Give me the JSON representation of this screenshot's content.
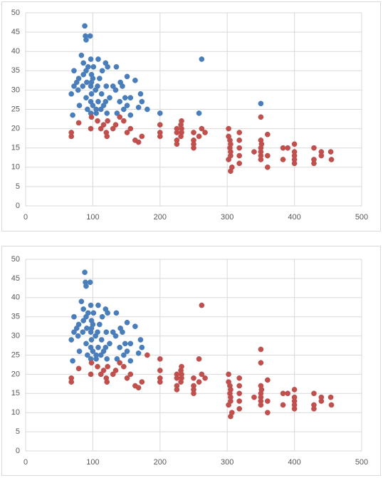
{
  "chart_data": [
    {
      "type": "scatter",
      "xlim": [
        0,
        500
      ],
      "xticks": [
        0,
        100,
        200,
        300,
        400,
        500
      ],
      "ylim": [
        0,
        50
      ],
      "yticks": [
        0,
        5,
        10,
        15,
        20,
        25,
        30,
        35,
        40,
        45,
        50
      ],
      "grid": true,
      "series": [
        {
          "color": "#4a7ebb",
          "x": [
            68,
            70,
            72,
            72,
            76,
            78,
            79,
            80,
            83,
            85,
            86,
            88,
            89,
            90,
            90,
            90,
            91,
            92,
            93,
            96,
            97,
            97,
            97,
            97,
            98,
            98,
            100,
            100,
            101,
            104,
            105,
            107,
            108,
            108,
            110,
            112,
            113,
            114,
            116,
            119,
            120,
            121,
            122,
            125,
            130,
            134,
            135,
            136,
            140,
            141,
            144,
            146,
            148,
            151,
            151,
            156,
            156,
            163,
            168,
            171,
            173,
            181,
            200,
            258,
            262,
            350,
            119,
            105,
            98,
            86
          ],
          "values": [
            29,
            23.5,
            31,
            35,
            32,
            30,
            33,
            26,
            39,
            31,
            37,
            46.6,
            44,
            43,
            35,
            28,
            32,
            25,
            36,
            44,
            38,
            31,
            27,
            24,
            34,
            29,
            33,
            26,
            36,
            30,
            24,
            31,
            38,
            27,
            33,
            25,
            29,
            35,
            26,
            37,
            31,
            24,
            36,
            28,
            31,
            30,
            36,
            24,
            27,
            32,
            31,
            25,
            28,
            33.5,
            26,
            28,
            23.5,
            32.5,
            25.5,
            29,
            27,
            25,
            24,
            24,
            38,
            26.5,
            27,
            25,
            32,
            34
          ]
        },
        {
          "color": "#c0504d",
          "x": [
            68,
            68,
            79,
            97,
            98,
            107,
            112,
            116,
            120,
            121,
            122,
            130,
            134,
            140,
            146,
            151,
            156,
            163,
            168,
            173,
            200,
            200,
            200,
            225,
            225,
            231,
            231,
            232,
            232,
            225,
            250,
            250,
            250,
            258,
            262,
            267,
            250,
            302,
            302,
            304,
            305,
            305,
            307,
            318,
            318,
            318,
            318,
            318,
            305,
            305,
            340,
            350,
            350,
            350,
            350,
            350,
            351,
            360,
            360,
            360,
            383,
            383,
            390,
            400,
            400,
            400,
            400,
            400,
            429,
            429,
            429,
            440,
            440,
            454,
            455,
            304,
            302,
            225,
            232,
            350
          ],
          "values": [
            18,
            19,
            21.5,
            20,
            23,
            22,
            20,
            21,
            19,
            18,
            22,
            20,
            21,
            23,
            22,
            19,
            20,
            17,
            16.5,
            18,
            19,
            21,
            18,
            19,
            17,
            21,
            18,
            20,
            22,
            16,
            19,
            16,
            17,
            18,
            20,
            19,
            15,
            20,
            18,
            15,
            13,
            9,
            10,
            19,
            15,
            13,
            11,
            17,
            14,
            16,
            14,
            23,
            17,
            15,
            13,
            12,
            16,
            18.5,
            13,
            10,
            15,
            12,
            15,
            16,
            14,
            13,
            12,
            11,
            15,
            12,
            11,
            14,
            13,
            14,
            12,
            17,
            12,
            20,
            19,
            14
          ]
        }
      ]
    },
    {
      "type": "scatter",
      "xlim": [
        0,
        500
      ],
      "xticks": [
        0,
        100,
        200,
        300,
        400,
        500
      ],
      "ylim": [
        0,
        50
      ],
      "yticks": [
        0,
        5,
        10,
        15,
        20,
        25,
        30,
        35,
        40,
        45,
        50
      ],
      "grid": true,
      "series": [
        {
          "color": "#4a7ebb",
          "x": [
            68,
            70,
            72,
            72,
            76,
            78,
            79,
            80,
            83,
            85,
            86,
            88,
            89,
            90,
            90,
            90,
            91,
            92,
            93,
            96,
            97,
            97,
            97,
            97,
            98,
            98,
            100,
            100,
            101,
            104,
            105,
            107,
            108,
            108,
            110,
            112,
            113,
            114,
            116,
            119,
            120,
            121,
            122,
            125,
            130,
            134,
            135,
            136,
            140,
            141,
            144,
            146,
            148,
            151,
            151,
            156,
            156,
            163,
            168,
            171,
            173,
            119,
            105,
            98,
            86
          ],
          "values": [
            29,
            23.5,
            31,
            35,
            32,
            30,
            33,
            26,
            39,
            31,
            37,
            46.6,
            44,
            43,
            35,
            28,
            32,
            25,
            36,
            44,
            38,
            31,
            27,
            24,
            34,
            29,
            33,
            26,
            36,
            30,
            24,
            31,
            38,
            27,
            33,
            25,
            29,
            35,
            26,
            37,
            31,
            24,
            36,
            28,
            31,
            30,
            36,
            24,
            27,
            32,
            31,
            25,
            28,
            33.5,
            26,
            28,
            23.5,
            32.5,
            25.5,
            29,
            27,
            27,
            25,
            32,
            34
          ]
        },
        {
          "color": "#c0504d",
          "x": [
            68,
            68,
            79,
            97,
            98,
            107,
            112,
            116,
            120,
            121,
            122,
            130,
            134,
            140,
            146,
            151,
            156,
            163,
            168,
            173,
            200,
            200,
            200,
            225,
            225,
            231,
            231,
            232,
            232,
            225,
            250,
            250,
            250,
            258,
            262,
            267,
            250,
            302,
            302,
            304,
            305,
            305,
            307,
            318,
            318,
            318,
            318,
            318,
            305,
            305,
            340,
            350,
            350,
            350,
            350,
            350,
            351,
            360,
            360,
            360,
            383,
            383,
            390,
            400,
            400,
            400,
            400,
            400,
            429,
            429,
            429,
            440,
            440,
            454,
            455,
            304,
            302,
            225,
            232,
            350,
            181,
            200,
            258,
            262,
            350
          ],
          "values": [
            18,
            19,
            21.5,
            20,
            23,
            22,
            20,
            21,
            19,
            18,
            22,
            20,
            21,
            23,
            22,
            19,
            20,
            17,
            16.5,
            18,
            19,
            21,
            18,
            19,
            17,
            21,
            18,
            20,
            22,
            16,
            19,
            16,
            17,
            18,
            20,
            19,
            15,
            20,
            18,
            15,
            13,
            9,
            10,
            19,
            15,
            13,
            11,
            17,
            14,
            16,
            14,
            23,
            17,
            15,
            13,
            12,
            16,
            18.5,
            13,
            10,
            15,
            12,
            15,
            16,
            14,
            13,
            12,
            11,
            15,
            12,
            11,
            14,
            13,
            14,
            12,
            17,
            12,
            20,
            19,
            14,
            25,
            24,
            24,
            38,
            26.5
          ]
        }
      ]
    }
  ]
}
